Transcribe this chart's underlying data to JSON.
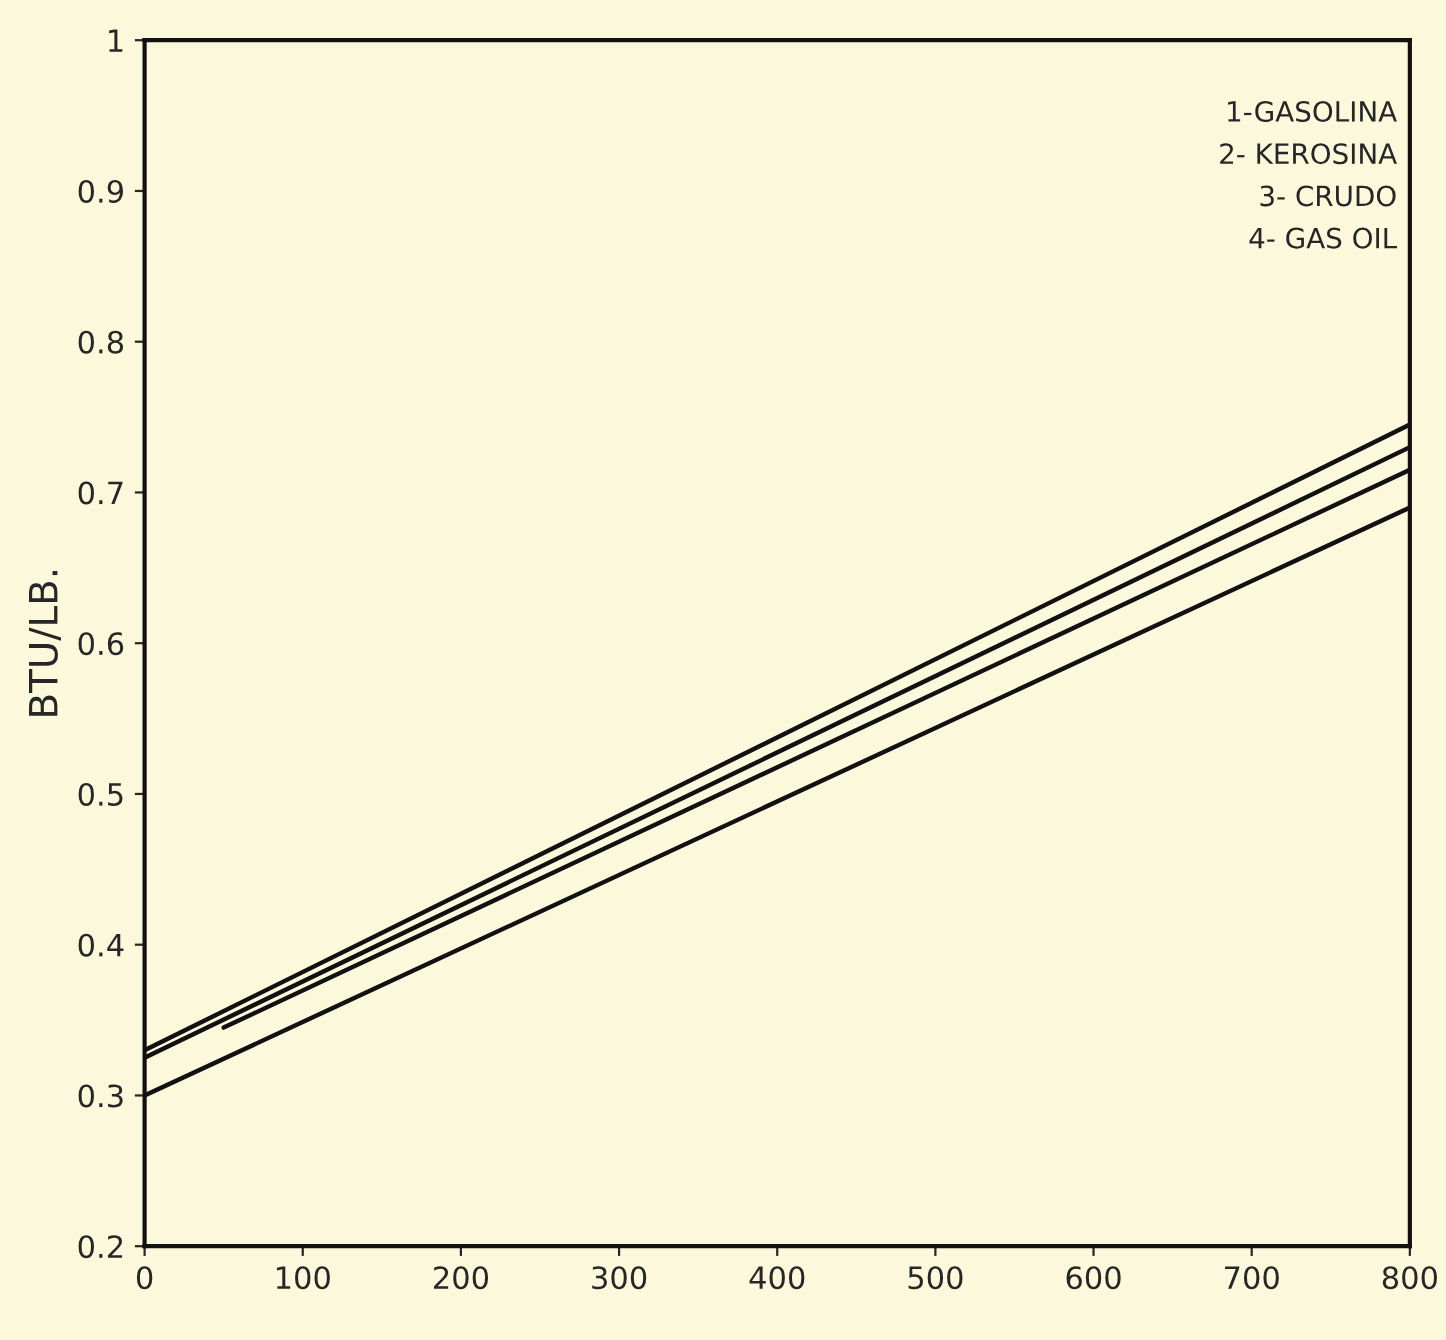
{
  "chart_data": {
    "type": "line",
    "ylabel": "BTU/LB.",
    "xlim": [
      0,
      800
    ],
    "xticks": [
      0,
      100,
      200,
      300,
      400,
      500,
      600,
      700,
      800
    ],
    "ylim": [
      0.2,
      1
    ],
    "yticks": [
      0.2,
      0.3,
      0.4,
      0.5,
      0.6,
      0.7,
      0.8,
      0.9,
      1
    ],
    "series": [
      {
        "color": "#111111",
        "x": [
          0,
          800
        ],
        "values": [
          0.33,
          0.745
        ]
      },
      {
        "color": "#111111",
        "x": [
          0,
          800
        ],
        "values": [
          0.325,
          0.73
        ]
      },
      {
        "color": "#111111",
        "x": [
          50,
          800
        ],
        "values": [
          0.345,
          0.715
        ]
      },
      {
        "color": "#111111",
        "x": [
          0,
          800
        ],
        "values": [
          0.3,
          0.69
        ]
      }
    ],
    "annotations": [
      "1-GASOLINA",
      "2- KEROSINA",
      "3- CRUDO",
      "4- GAS OIL"
    ],
    "grid": false,
    "legend": false,
    "marker": "none",
    "line_style": "solid"
  }
}
